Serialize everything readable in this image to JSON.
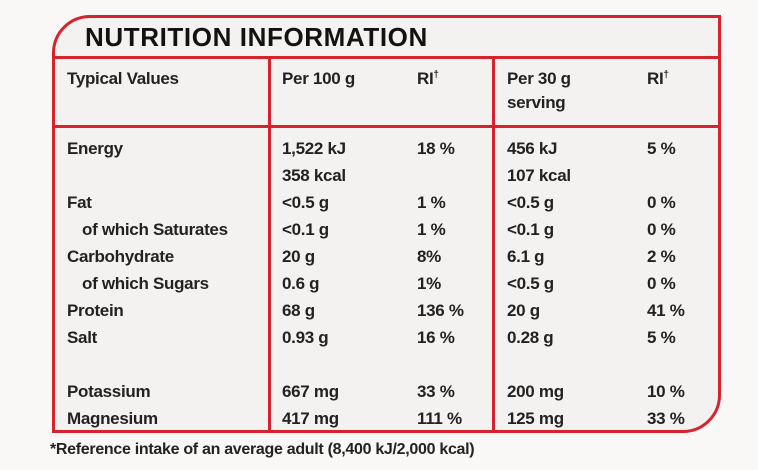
{
  "title": "NUTRITION INFORMATION",
  "header": {
    "col_typical_values": "Typical Values",
    "col_per100": "Per 100 g",
    "col_ri": "RI",
    "ri_dagger": "†",
    "col_per30_line1": "Per 30 g",
    "col_per30_line2": "serving"
  },
  "rows": [
    {
      "label": "Energy",
      "per100": "1,522 kJ",
      "per100_line2": "358 kcal",
      "ri_per100": "18 %",
      "per30": "456 kJ",
      "per30_line2": "107 kcal",
      "ri_per30": "5 %"
    },
    {
      "label": "Fat",
      "per100": "<0.5 g",
      "ri_per100": "1 %",
      "per30": "<0.5 g",
      "ri_per30": "0 %"
    },
    {
      "label": "of which Saturates",
      "per100": "<0.1 g",
      "ri_per100": "1 %",
      "per30": "<0.1 g",
      "ri_per30": "0 %"
    },
    {
      "label": "Carbohydrate",
      "per100": "20 g",
      "ri_per100": "8%",
      "per30": "6.1 g",
      "ri_per30": "2 %"
    },
    {
      "label": "of which Sugars",
      "per100": "0.6 g",
      "ri_per100": "1%",
      "per30": "<0.5 g",
      "ri_per30": "0 %"
    },
    {
      "label": "Protein",
      "per100": "68 g",
      "ri_per100": "136 %",
      "per30": "20 g",
      "ri_per30": "41 %"
    },
    {
      "label": "Salt",
      "per100": "0.93 g",
      "ri_per100": "16 %",
      "per30": "0.28 g",
      "ri_per30": "5  %"
    },
    {
      "label": "Potassium",
      "per100": "667 mg",
      "ri_per100": "33 %",
      "per30": "200 mg",
      "ri_per30": "10 %"
    },
    {
      "label": "Magnesium",
      "per100": "417 mg",
      "ri_per100": "111 %",
      "per30": "125 mg",
      "ri_per30": "33 %"
    }
  ],
  "footnote": "*Reference intake of an average adult (8,400 kJ/2,000 kcal)",
  "colors": {
    "border_red": "#d6232e",
    "label_background": "#f4f2f0",
    "page_background": "#faf8f7",
    "text": "#242220"
  }
}
